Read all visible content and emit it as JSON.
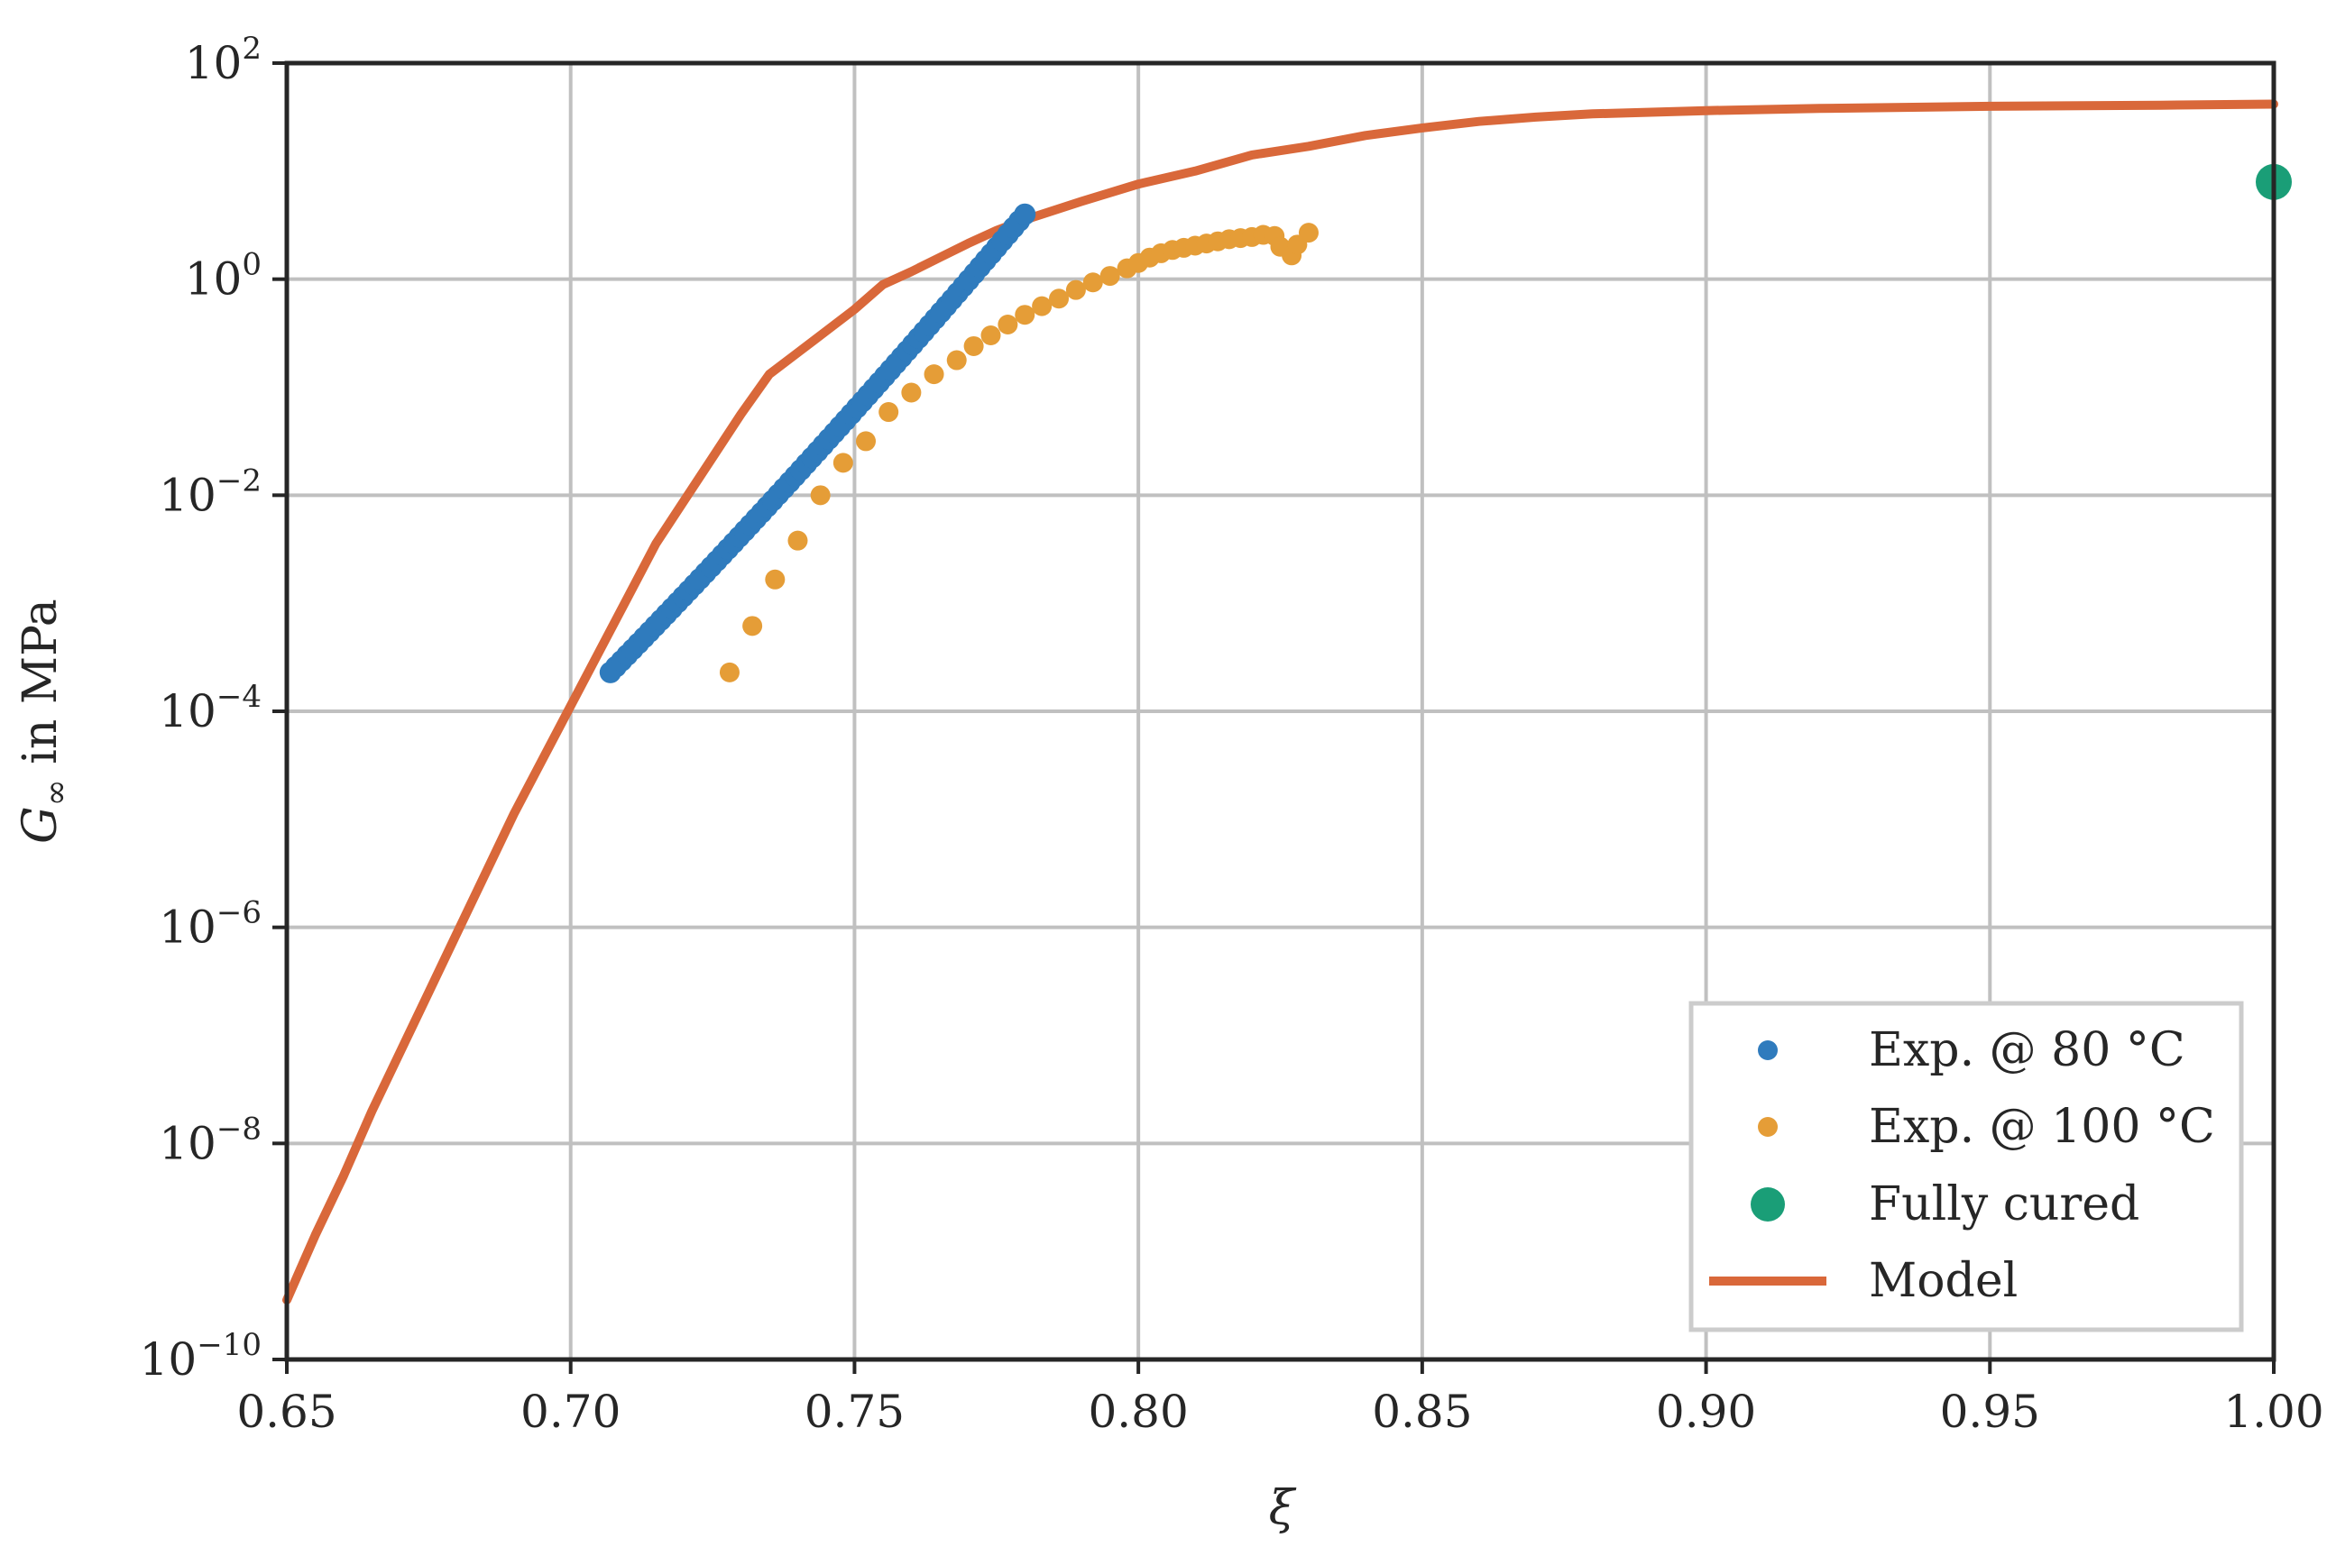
{
  "chart_data": {
    "type": "scatter",
    "xlabel": "ξ",
    "ylabel_parts": {
      "symbol": "G",
      "subscript": "∞",
      "rest": " in MPa"
    },
    "xlim": [
      0.65,
      1.0
    ],
    "ylim_log10": [
      -10,
      2
    ],
    "y_scale": "log",
    "grid": true,
    "legend_position": "bottom-right",
    "x_ticks": [
      {
        "value": 0.65,
        "label": "0.65"
      },
      {
        "value": 0.7,
        "label": "0.70"
      },
      {
        "value": 0.75,
        "label": "0.75"
      },
      {
        "value": 0.8,
        "label": "0.80"
      },
      {
        "value": 0.85,
        "label": "0.85"
      },
      {
        "value": 0.9,
        "label": "0.90"
      },
      {
        "value": 0.95,
        "label": "0.95"
      },
      {
        "value": 1.0,
        "label": "1.00"
      }
    ],
    "y_ticks": [
      {
        "exp": 2,
        "base": "10",
        "sup": "2"
      },
      {
        "exp": 0,
        "base": "10",
        "sup": "0"
      },
      {
        "exp": -2,
        "base": "10",
        "sup": "−2"
      },
      {
        "exp": -4,
        "base": "10",
        "sup": "−4"
      },
      {
        "exp": -6,
        "base": "10",
        "sup": "−6"
      },
      {
        "exp": -8,
        "base": "10",
        "sup": "−8"
      },
      {
        "exp": -10,
        "base": "10",
        "sup": "−10"
      }
    ],
    "series": [
      {
        "name": "Exp. @ 80 °C",
        "kind": "markers",
        "color": "#2f7bbd",
        "x_start": 0.707,
        "x_end": 0.78,
        "count": 75,
        "log10_start": -3.64,
        "log10_end": 0.6
      },
      {
        "name": "Exp. @ 100 °C",
        "kind": "markers",
        "color": "#e59d37",
        "points": [
          [
            0.728,
            -3.64
          ],
          [
            0.732,
            -3.21
          ],
          [
            0.736,
            -2.78
          ],
          [
            0.74,
            -2.42
          ],
          [
            0.744,
            -2.0
          ],
          [
            0.748,
            -1.7
          ],
          [
            0.752,
            -1.5
          ],
          [
            0.756,
            -1.23
          ],
          [
            0.76,
            -1.05
          ],
          [
            0.764,
            -0.88
          ],
          [
            0.768,
            -0.75
          ],
          [
            0.771,
            -0.62
          ],
          [
            0.774,
            -0.52
          ],
          [
            0.777,
            -0.42
          ],
          [
            0.78,
            -0.33
          ],
          [
            0.783,
            -0.25
          ],
          [
            0.786,
            -0.18
          ],
          [
            0.789,
            -0.1
          ],
          [
            0.792,
            -0.03
          ],
          [
            0.795,
            0.03
          ],
          [
            0.798,
            0.1
          ],
          [
            0.8,
            0.15
          ],
          [
            0.802,
            0.2
          ],
          [
            0.804,
            0.24
          ],
          [
            0.806,
            0.27
          ],
          [
            0.808,
            0.29
          ],
          [
            0.81,
            0.31
          ],
          [
            0.812,
            0.33
          ],
          [
            0.814,
            0.35
          ],
          [
            0.816,
            0.37
          ],
          [
            0.818,
            0.38
          ],
          [
            0.82,
            0.39
          ],
          [
            0.822,
            0.41
          ],
          [
            0.824,
            0.4
          ],
          [
            0.825,
            0.3
          ],
          [
            0.827,
            0.22
          ],
          [
            0.828,
            0.32
          ],
          [
            0.83,
            0.43
          ]
        ]
      },
      {
        "name": "Fully cured",
        "kind": "marker-large",
        "color": "#1a9e77",
        "points": [
          [
            1.0,
            0.9
          ]
        ]
      },
      {
        "name": "Model",
        "kind": "line",
        "color": "#d9683a",
        "points": [
          [
            0.65,
            -9.45
          ],
          [
            0.655,
            -8.85
          ],
          [
            0.66,
            -8.3
          ],
          [
            0.665,
            -7.7
          ],
          [
            0.67,
            -7.15
          ],
          [
            0.675,
            -6.6
          ],
          [
            0.68,
            -6.05
          ],
          [
            0.685,
            -5.5
          ],
          [
            0.69,
            -4.95
          ],
          [
            0.695,
            -4.45
          ],
          [
            0.7,
            -3.95
          ],
          [
            0.705,
            -3.45
          ],
          [
            0.71,
            -2.95
          ],
          [
            0.715,
            -2.45
          ],
          [
            0.72,
            -2.05
          ],
          [
            0.725,
            -1.65
          ],
          [
            0.73,
            -1.25
          ],
          [
            0.735,
            -0.88
          ],
          [
            0.74,
            -0.68
          ],
          [
            0.745,
            -0.48
          ],
          [
            0.75,
            -0.28
          ],
          [
            0.755,
            -0.05
          ],
          [
            0.76,
            0.07
          ],
          [
            0.765,
            0.2
          ],
          [
            0.77,
            0.33
          ],
          [
            0.775,
            0.45
          ],
          [
            0.78,
            0.55
          ],
          [
            0.79,
            0.72
          ],
          [
            0.8,
            0.88
          ],
          [
            0.81,
            1.0
          ],
          [
            0.82,
            1.15
          ],
          [
            0.83,
            1.23
          ],
          [
            0.84,
            1.33
          ],
          [
            0.85,
            1.4
          ],
          [
            0.86,
            1.46
          ],
          [
            0.87,
            1.5
          ],
          [
            0.88,
            1.53
          ],
          [
            0.9,
            1.56
          ],
          [
            0.92,
            1.58
          ],
          [
            0.95,
            1.6
          ],
          [
            0.98,
            1.61
          ],
          [
            1.0,
            1.62
          ]
        ]
      }
    ]
  }
}
